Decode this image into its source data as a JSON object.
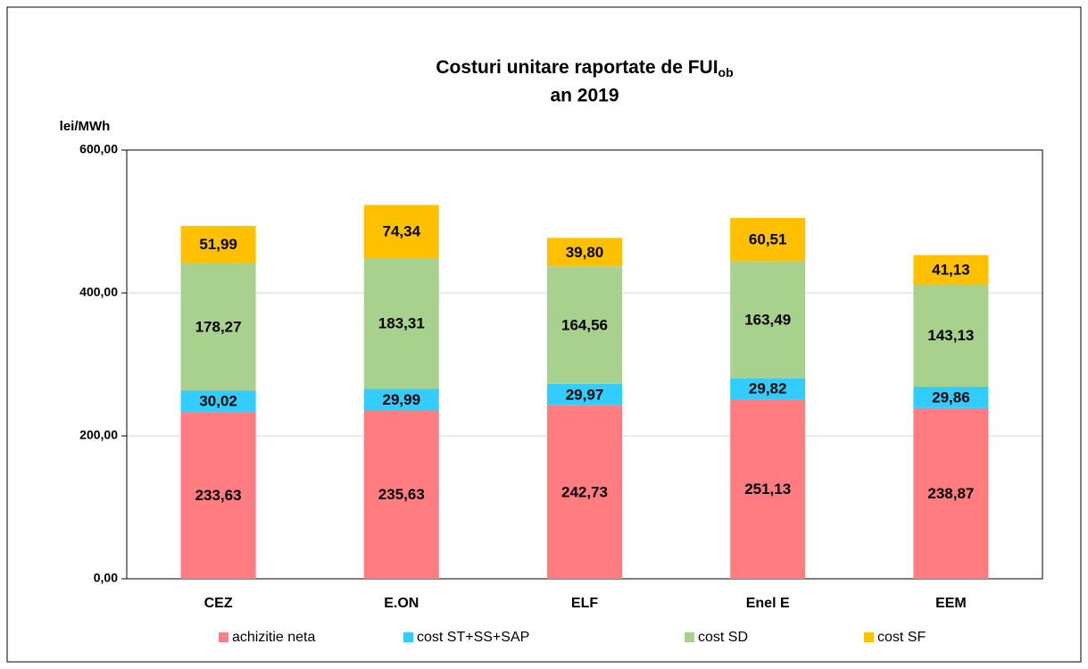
{
  "chart_data": {
    "type": "stacked_bar",
    "title": "Costuri unitare raportate de FUI",
    "title_subscript": "ob",
    "subtitle": "an 2019",
    "y_label": "lei/MWh",
    "categories": [
      "CEZ",
      "E.ON",
      "ELF",
      "Enel E",
      "EEM"
    ],
    "series": [
      {
        "name": "achizitie neta",
        "color": "#ff7c80",
        "values": [
          233.63,
          235.63,
          242.73,
          251.13,
          238.87
        ],
        "value_labels": [
          "233,63",
          "235,63",
          "242,73",
          "251,13",
          "238,87"
        ]
      },
      {
        "name": "cost ST+SS+SAP",
        "color": "#33ccff",
        "values": [
          30.02,
          29.99,
          29.97,
          29.82,
          29.86
        ],
        "value_labels": [
          "30,02",
          "29,99",
          "29,97",
          "29,82",
          "29,86"
        ]
      },
      {
        "name": "cost SD",
        "color": "#a9d18e",
        "values": [
          178.27,
          183.31,
          164.56,
          163.49,
          143.13
        ],
        "value_labels": [
          "178,27",
          "183,31",
          "164,56",
          "163,49",
          "143,13"
        ]
      },
      {
        "name": "cost SF",
        "color": "#ffc000",
        "values": [
          51.99,
          74.34,
          39.8,
          60.51,
          41.13
        ],
        "value_labels": [
          "51,99",
          "74,34",
          "39,80",
          "60,51",
          "41,13"
        ]
      }
    ],
    "ylim": [
      0,
      600
    ],
    "yticks": [
      {
        "value": 0,
        "label": "0,00"
      },
      {
        "value": 200,
        "label": "200,00"
      },
      {
        "value": 400,
        "label": "400,00"
      },
      {
        "value": 600,
        "label": "600,00"
      }
    ],
    "grid": true,
    "legend": "bottom"
  }
}
